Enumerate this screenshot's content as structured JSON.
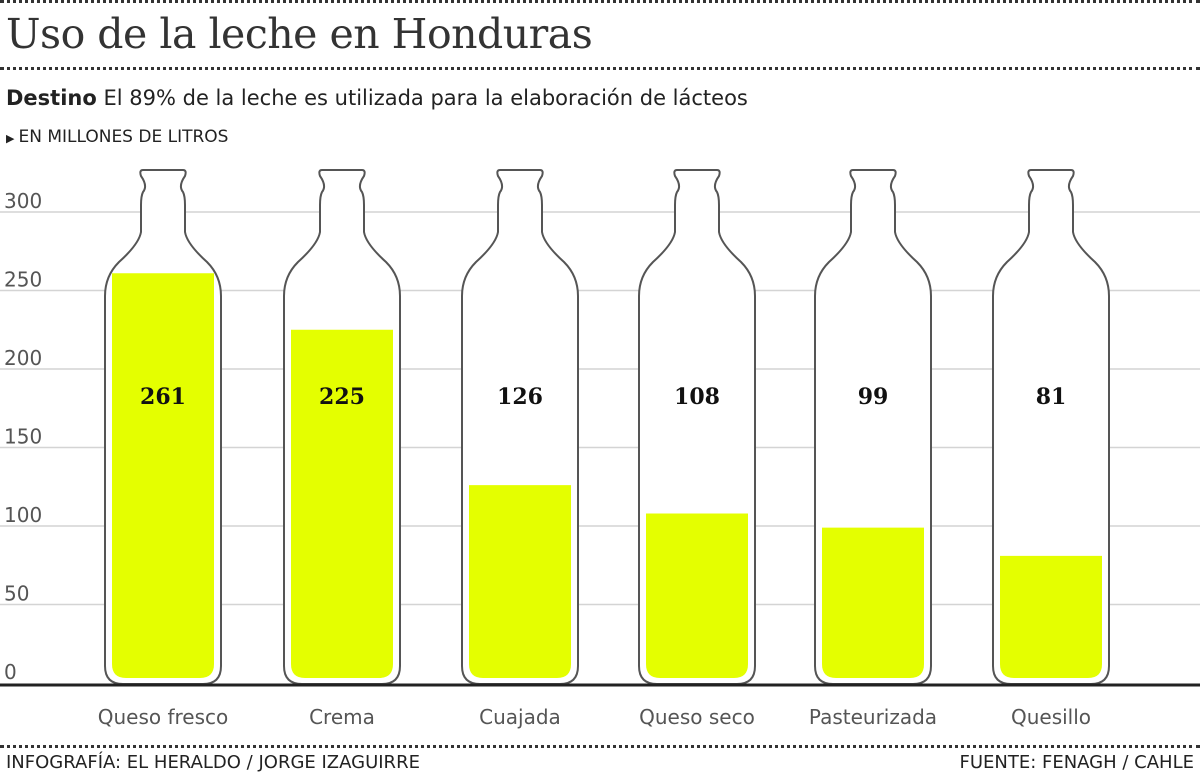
{
  "header": {
    "title": "Uso de la leche en Honduras",
    "subtitle_bold": "Destino",
    "subtitle": "El 89% de la leche es utilizada para la elaboración de lácteos",
    "unit": "EN MILLONES DE LITROS",
    "unit_marker": "▶"
  },
  "footer": {
    "credit": "INFOGRAFÍA: EL HERALDO / JORGE IZAGUIRRE",
    "source": "FUENTE: FENAGH / CAHLE"
  },
  "chart_data": {
    "type": "bar",
    "title": "Uso de la leche en Honduras",
    "ylabel": "EN MILLONES DE LITROS",
    "xlabel": "",
    "ylim": [
      0,
      300
    ],
    "yticks": [
      0,
      50,
      100,
      150,
      200,
      250,
      300
    ],
    "grid": true,
    "categories": [
      "Queso fresco",
      "Crema",
      "Cuajada",
      "Queso seco",
      "Pasteurizada",
      "Quesillo"
    ],
    "values": [
      261,
      225,
      126,
      108,
      99,
      81
    ],
    "fill_color": "#e4ff00"
  }
}
